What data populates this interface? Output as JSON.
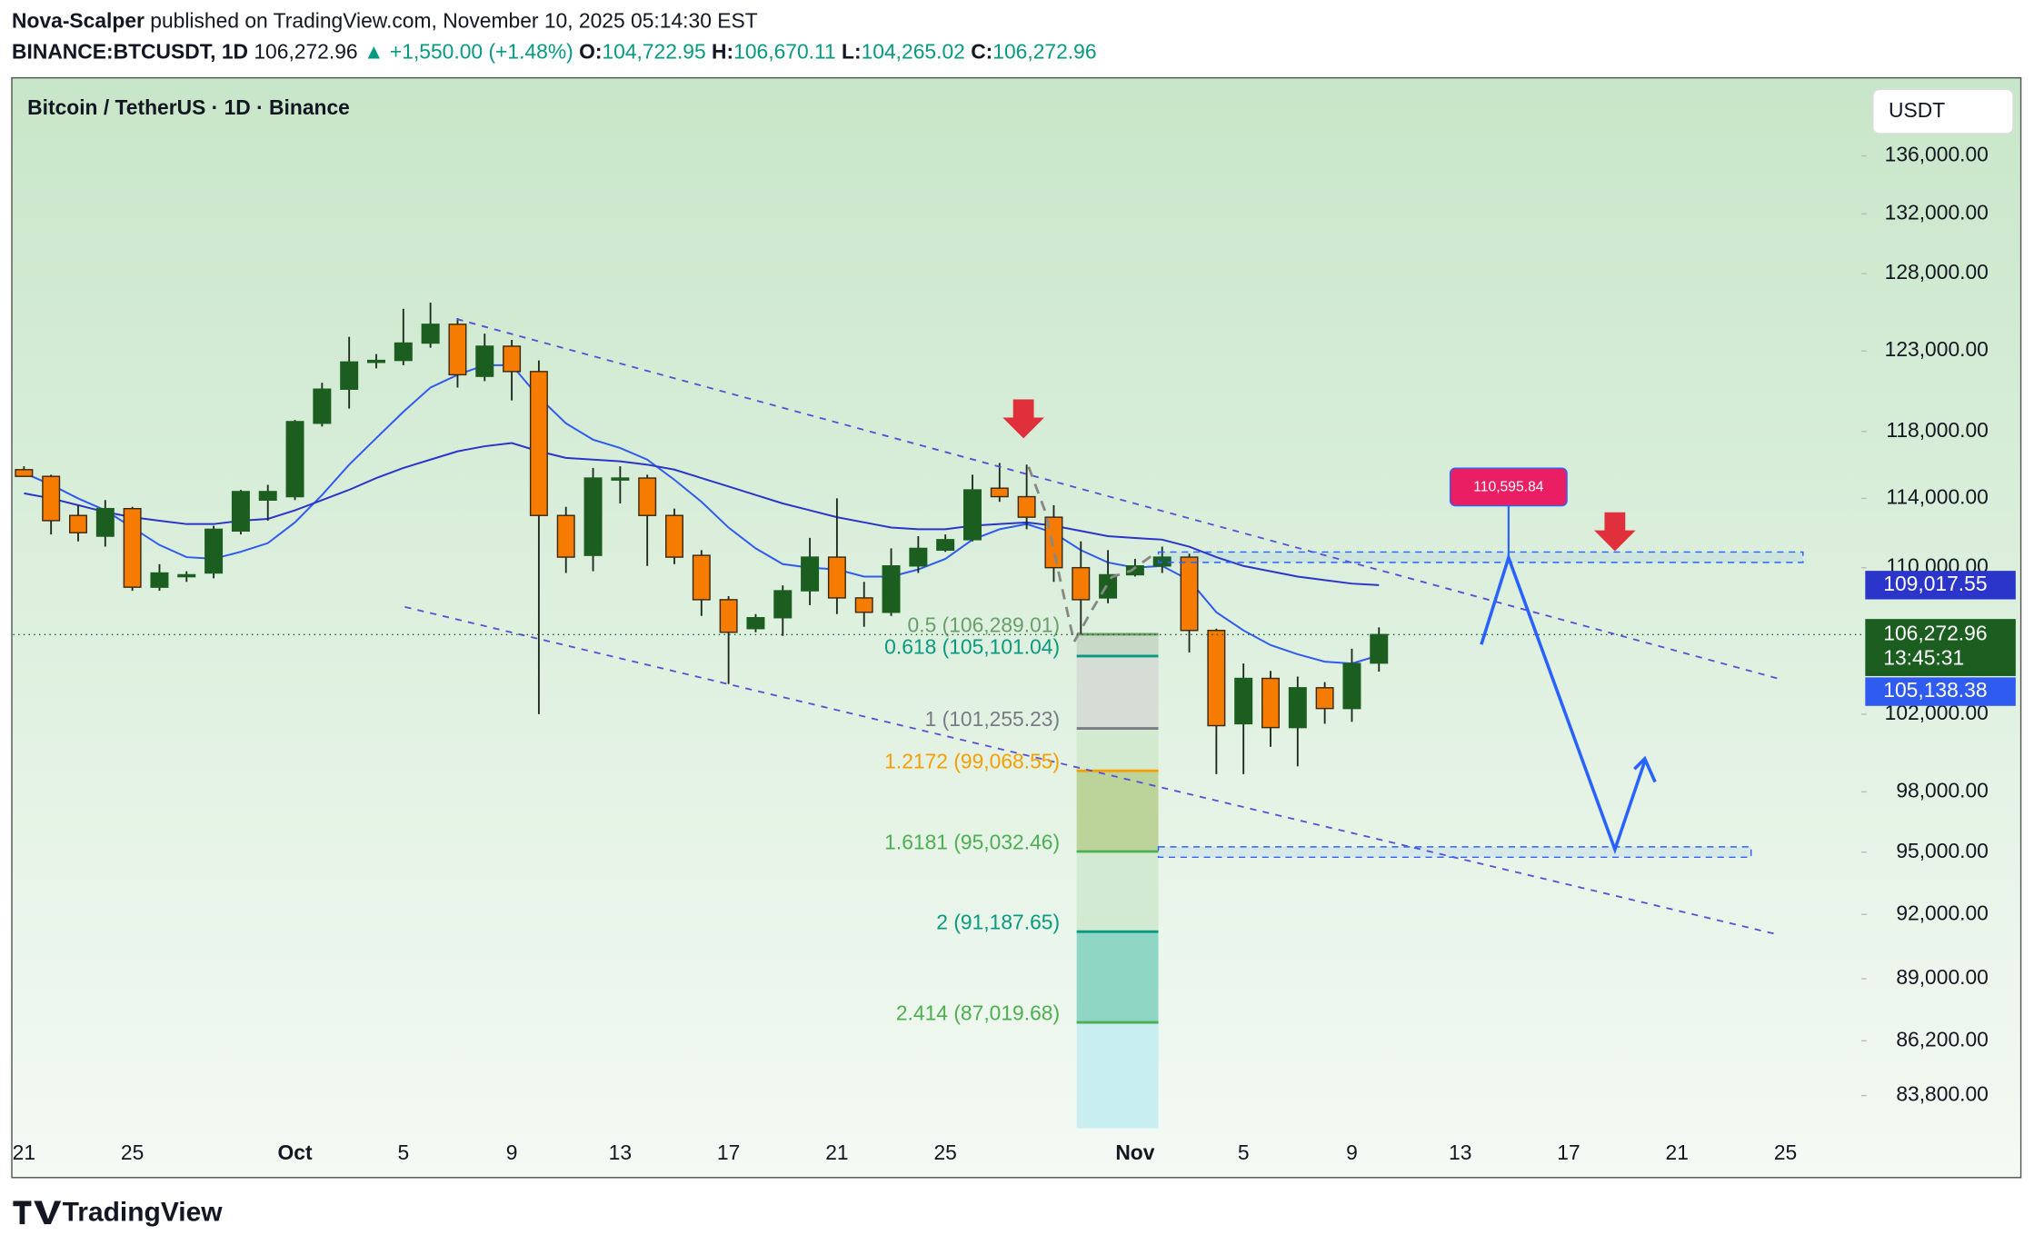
{
  "header": {
    "author": "Nova-Scalper",
    "published": "published on TradingView.com, November 10, 2025 05:14:30 EST",
    "symbol": "BINANCE:BTCUSDT, 1D",
    "price": "106,272.96",
    "arrow": "▲",
    "change": "+1,550.00 (+1.48%)",
    "ohlc": [
      {
        "key": "O:",
        "value": "104,722.95"
      },
      {
        "key": "H:",
        "value": "106,670.11"
      },
      {
        "key": "L:",
        "value": "104,265.02"
      },
      {
        "key": "C:",
        "value": "106,272.96"
      }
    ],
    "logo": "TradingView"
  },
  "chart_data": {
    "type": "candlestick",
    "title": "Bitcoin / TetherUS · 1D · Binance",
    "currency": "USDT",
    "categories": [
      "21",
      null,
      null,
      null,
      "25",
      null,
      null,
      null,
      null,
      null,
      "Oct",
      null,
      null,
      null,
      "5",
      null,
      null,
      null,
      "9",
      null,
      null,
      null,
      "13",
      null,
      null,
      null,
      "17",
      null,
      null,
      null,
      "21",
      null,
      null,
      null,
      "25",
      null,
      null,
      null,
      null,
      null,
      null,
      "Nov",
      null,
      null,
      null,
      "5",
      null,
      null,
      null,
      "9",
      null,
      null,
      null,
      "13",
      null,
      null,
      null,
      "17",
      null,
      null,
      null,
      "21",
      null,
      null,
      null,
      "25"
    ],
    "xlim": [
      -0.4,
      67.8
    ],
    "ylim": [
      82400,
      141400
    ],
    "log_scale": true,
    "grid": false,
    "yticks": [
      {
        "value": 136000,
        "label": "136,000.00"
      },
      {
        "value": 132000,
        "label": "132,000.00"
      },
      {
        "value": 128000,
        "label": "128,000.00"
      },
      {
        "value": 123000,
        "label": "123,000.00"
      },
      {
        "value": 118000,
        "label": "118,000.00"
      },
      {
        "value": 114000,
        "label": "114,000.00"
      },
      {
        "value": 110000,
        "label": "110,000.00"
      },
      {
        "value": 102000,
        "label": "102,000.00"
      },
      {
        "value": 98000,
        "label": "98,000.00"
      },
      {
        "value": 95000,
        "label": "95,000.00"
      },
      {
        "value": 92000,
        "label": "92,000.00"
      },
      {
        "value": 89000,
        "label": "89,000.00"
      },
      {
        "value": 86200,
        "label": "86,200.00"
      },
      {
        "value": 83800,
        "label": "83,800.00"
      }
    ],
    "candles": {
      "up_color": "#1b5e20",
      "down_color": "#f57c00",
      "open": [
        115700,
        115300,
        113000,
        111800,
        113400,
        108900,
        109500,
        109700,
        112100,
        113900,
        114100,
        118500,
        120600,
        122300,
        122400,
        123500,
        124700,
        121400,
        123300,
        121700,
        113000,
        110700,
        115100,
        115200,
        113000,
        110700,
        108200,
        106600,
        107200,
        108700,
        110600,
        108300,
        107500,
        110100,
        111000,
        111600,
        114600,
        114100,
        112900,
        110000,
        108300,
        109600,
        110100,
        110600,
        106500,
        101500,
        103900,
        101300,
        103400,
        102300,
        104722.95,
        null,
        null,
        null,
        null,
        null,
        null,
        null,
        null,
        null,
        null,
        null,
        null,
        null,
        null,
        null
      ],
      "high": [
        115900,
        115400,
        113600,
        113900,
        113500,
        110200,
        109800,
        112400,
        114500,
        114800,
        118700,
        121000,
        123900,
        122800,
        125700,
        126100,
        125100,
        124100,
        123700,
        122400,
        113500,
        115800,
        115900,
        115400,
        113400,
        111000,
        108400,
        107400,
        109000,
        111700,
        114000,
        109200,
        111100,
        111800,
        111900,
        115400,
        116100,
        116000,
        113600,
        111500,
        111000,
        110500,
        111200,
        110800,
        106600,
        104700,
        104300,
        104000,
        103700,
        105500,
        106670.11,
        null,
        null,
        null,
        null,
        null,
        null,
        null,
        null,
        null,
        null,
        null,
        null,
        null,
        null,
        null
      ],
      "low": [
        115300,
        111900,
        111500,
        111200,
        108700,
        108700,
        109200,
        109400,
        111900,
        112700,
        113900,
        118300,
        119400,
        121900,
        122100,
        123200,
        120700,
        121100,
        119900,
        102000,
        109700,
        109800,
        113700,
        110100,
        110200,
        107300,
        103600,
        106400,
        106200,
        107900,
        107400,
        106700,
        107300,
        109700,
        110900,
        111500,
        113800,
        112200,
        109200,
        106300,
        108000,
        109500,
        109700,
        105300,
        98900,
        98900,
        100300,
        99300,
        101500,
        101600,
        104265.02,
        null,
        null,
        null,
        null,
        null,
        null,
        null,
        null,
        null,
        null,
        null,
        null,
        null,
        null,
        null
      ],
      "close": [
        115300,
        112700,
        112000,
        113400,
        108900,
        109700,
        109600,
        112200,
        114400,
        114400,
        118600,
        120600,
        122300,
        122400,
        123500,
        124700,
        121500,
        123300,
        121700,
        113000,
        110600,
        115200,
        115200,
        113000,
        110600,
        108200,
        106400,
        107200,
        108700,
        110600,
        108300,
        107500,
        110100,
        111100,
        111600,
        114500,
        114100,
        112900,
        110000,
        108200,
        109600,
        110100,
        110600,
        106500,
        101400,
        103900,
        101300,
        103400,
        102300,
        104700,
        106272.96,
        null,
        null,
        null,
        null,
        null,
        null,
        null,
        null,
        null,
        null,
        null,
        null,
        null,
        null,
        null
      ]
    },
    "lines": [
      {
        "color": "#2f5bf0",
        "value_label": "105,138.38",
        "values": [
          115500,
          114800,
          114000,
          113300,
          112300,
          111300,
          110600,
          110500,
          110900,
          111400,
          112600,
          114200,
          116000,
          117600,
          119200,
          120700,
          121500,
          122100,
          122100,
          120100,
          118500,
          117500,
          117000,
          116300,
          115100,
          113800,
          112300,
          111100,
          110200,
          110000,
          109900,
          109500,
          109500,
          109900,
          110500,
          111600,
          112200,
          112500,
          112000,
          111000,
          110300,
          110000,
          110100,
          109300,
          107500,
          106500,
          105700,
          105200,
          104800,
          104700,
          105138.38,
          null,
          null,
          null,
          null,
          null,
          null,
          null,
          null,
          null,
          null,
          null,
          null,
          null,
          null,
          null
        ]
      },
      {
        "color": "#2b35c9",
        "value_label": "109,017.55",
        "values": [
          114300,
          114000,
          113600,
          113200,
          112900,
          112700,
          112500,
          112500,
          112700,
          112800,
          113300,
          113900,
          114500,
          115200,
          115800,
          116300,
          116800,
          117100,
          117300,
          116800,
          116400,
          116300,
          116200,
          116000,
          115700,
          115200,
          114700,
          114200,
          113700,
          113300,
          112900,
          112600,
          112300,
          112200,
          112200,
          112400,
          112500,
          112600,
          112400,
          112100,
          111800,
          111700,
          111600,
          111200,
          110600,
          110100,
          109800,
          109500,
          109300,
          109100,
          109017.55,
          null,
          null,
          null,
          null,
          null,
          null,
          null,
          null,
          null,
          null,
          null,
          null,
          null,
          null,
          null
        ]
      }
    ],
    "last_price": {
      "label": "106,272.96",
      "countdown": "13:45:31",
      "color": "#1b5e20"
    },
    "fib": [
      {
        "value": 106289.01,
        "label": "0.5 (106,289.01)",
        "color": "#6a9e6a",
        "fill": "#c8d9c8"
      },
      {
        "value": 105101.04,
        "label": "0.618 (105,101.04)",
        "color": "#089981",
        "fill": "#d6dcd6"
      },
      {
        "value": 101255.23,
        "label": "1 (101,255.23)",
        "color": "#787b86",
        "fill": "#d4ead0"
      },
      {
        "value": 99068.55,
        "label": "1.2172 (99,068.55)",
        "color": "#f59f00",
        "fill": "#bcd49a"
      },
      {
        "value": 95032.46,
        "label": "1.6181 (95,032.46)",
        "color": "#4caf50",
        "fill": "#d1ead1"
      },
      {
        "value": 91187.65,
        "label": "2 (91,187.65)",
        "color": "#089981",
        "fill": "#8fd6c4"
      },
      {
        "value": 87019.68,
        "label": "2.414 (87,019.68)",
        "color": "#4caf50",
        "fill": "#c8eef2"
      }
    ],
    "target": {
      "value": 110595.84,
      "label": "110,595.84",
      "color": "#e91e63"
    }
  }
}
